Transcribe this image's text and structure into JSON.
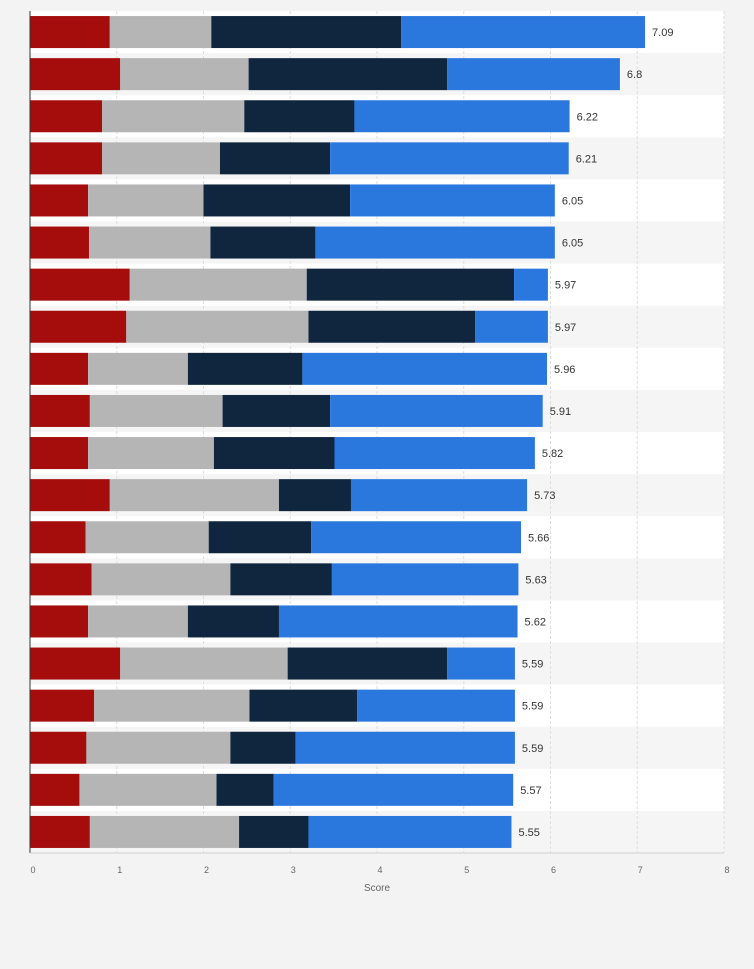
{
  "chart_data": {
    "type": "bar",
    "orientation": "horizontal",
    "stacked": true,
    "xlabel": "Score",
    "xlim": [
      0,
      8
    ],
    "x_ticks": [
      "0",
      "1",
      "2",
      "3",
      "4",
      "5",
      "6",
      "7",
      "8"
    ],
    "grid": true,
    "legend": "none",
    "row_count": 20,
    "totals": [
      "7.09",
      "6.8",
      "6.22",
      "6.21",
      "6.05",
      "6.05",
      "5.97",
      "5.97",
      "5.96",
      "5.91",
      "5.82",
      "5.73",
      "5.66",
      "5.63",
      "5.62",
      "5.59",
      "5.59",
      "5.59",
      "5.57",
      "5.55"
    ],
    "series": [
      {
        "color": "#a50c0c",
        "values": [
          0.92,
          1.04,
          0.83,
          0.83,
          0.67,
          0.68,
          1.15,
          1.11,
          0.67,
          0.69,
          0.67,
          0.92,
          0.64,
          0.71,
          0.67,
          1.04,
          0.74,
          0.65,
          0.57,
          0.69
        ]
      },
      {
        "color": "#b5b5b5",
        "values": [
          1.17,
          1.48,
          1.64,
          1.36,
          1.33,
          1.4,
          2.04,
          2.1,
          1.15,
          1.53,
          1.45,
          1.95,
          1.42,
          1.6,
          1.15,
          1.93,
          1.79,
          1.66,
          1.58,
          1.72
        ]
      },
      {
        "color": "#10263e",
        "values": [
          2.19,
          2.29,
          1.27,
          1.27,
          1.69,
          1.21,
          2.39,
          1.92,
          1.32,
          1.24,
          1.39,
          0.83,
          1.18,
          1.17,
          1.05,
          1.84,
          1.24,
          0.75,
          0.66,
          0.8
        ]
      },
      {
        "color": "#2a78de",
        "values": [
          2.81,
          1.99,
          2.48,
          2.75,
          2.36,
          2.76,
          0.39,
          0.84,
          2.82,
          2.45,
          2.31,
          2.03,
          2.42,
          2.15,
          2.75,
          0.78,
          1.82,
          2.53,
          2.76,
          2.34
        ]
      }
    ]
  }
}
